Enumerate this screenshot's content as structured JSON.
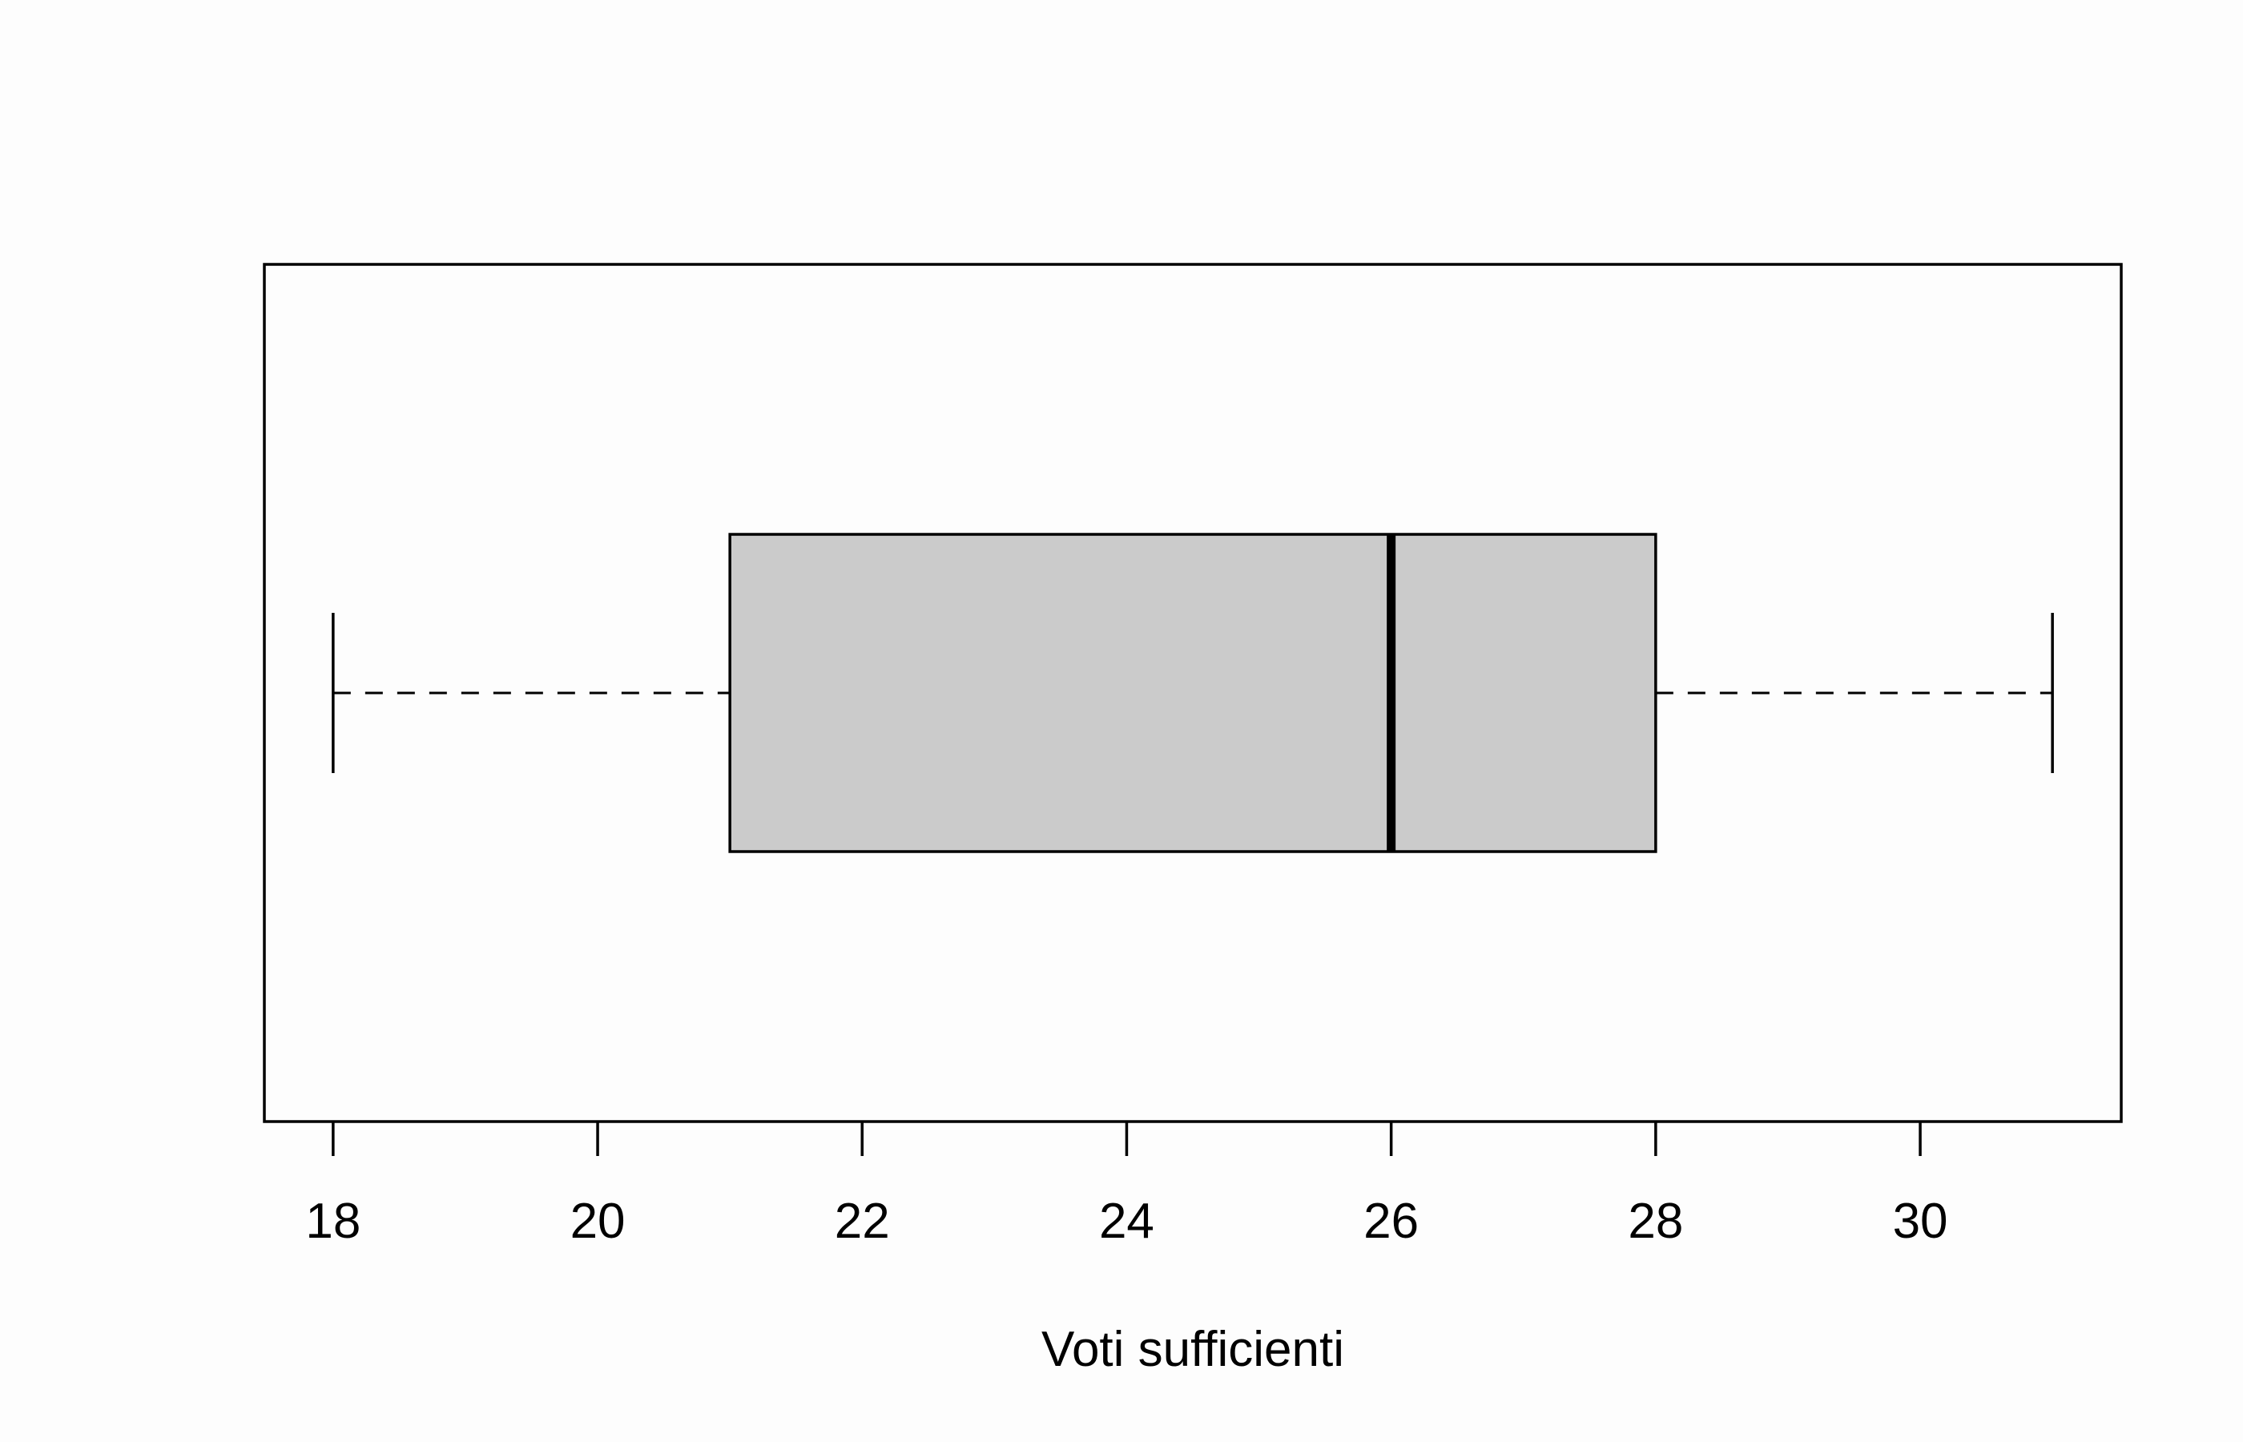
{
  "chart_data": {
    "type": "boxplot",
    "orientation": "horizontal",
    "xlabel": "Voti sufficienti",
    "xlim": [
      17.48,
      31.52
    ],
    "xticks": [
      18,
      20,
      22,
      24,
      26,
      28,
      30
    ],
    "tick_labels": [
      "18",
      "20",
      "22",
      "24",
      "26",
      "28",
      "30"
    ],
    "box": {
      "min": 18,
      "q1": 21,
      "median": 26,
      "q3": 28,
      "max": 31
    },
    "box_fill": "#cbcbcb",
    "background": "#fdfdfd"
  }
}
